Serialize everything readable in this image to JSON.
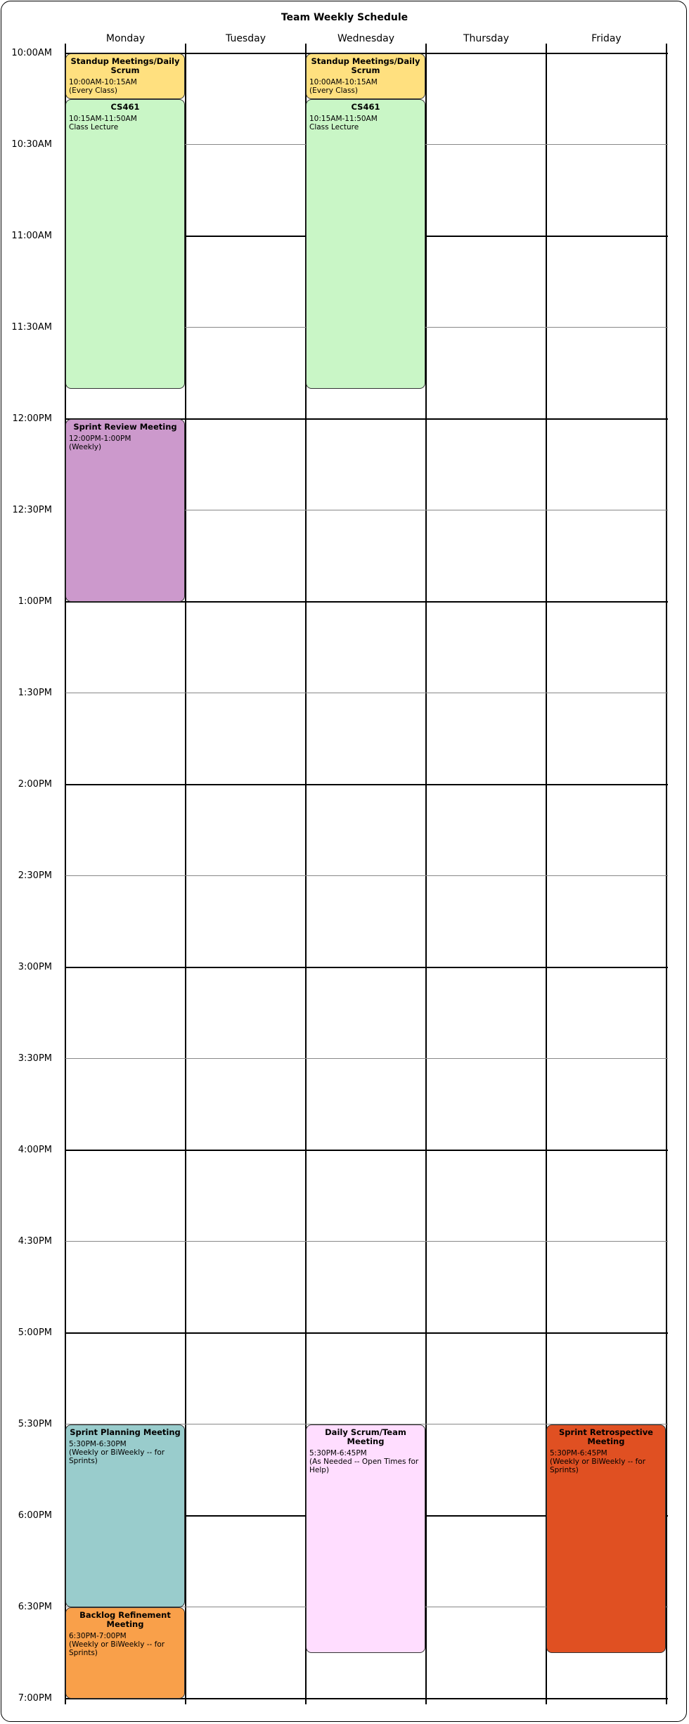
{
  "calendar": {
    "title": "Team Weekly Schedule",
    "days": [
      "Monday",
      "Tuesday",
      "Wednesday",
      "Thursday",
      "Friday"
    ],
    "times": [
      "10:00AM",
      "10:30AM",
      "11:00AM",
      "11:30AM",
      "12:00PM",
      "12:30PM",
      "1:00PM",
      "1:30PM",
      "2:00PM",
      "2:30PM",
      "3:00PM",
      "3:30PM",
      "4:00PM",
      "4:30PM",
      "5:00PM",
      "5:30PM",
      "6:00PM",
      "6:30PM",
      "7:00PM"
    ]
  },
  "events": [
    {
      "day": 0,
      "start": 600,
      "end": 615,
      "title": "Standup Meetings/Daily Scrum",
      "time": "10:00AM-10:15AM",
      "note": "(Every Class)",
      "color": "#FFE07F"
    },
    {
      "day": 0,
      "start": 615,
      "end": 710,
      "title": "CS461",
      "time": "10:15AM-11:50AM",
      "note": "Class Lecture",
      "color": "#C9F6C6"
    },
    {
      "day": 0,
      "start": 720,
      "end": 780,
      "title": "Sprint Review Meeting",
      "time": "12:00PM-1:00PM",
      "note": "(Weekly)",
      "color": "#CC99CC"
    },
    {
      "day": 0,
      "start": 1050,
      "end": 1110,
      "title": "Sprint Planning Meeting",
      "time": "5:30PM-6:30PM",
      "note": "(Weekly or BiWeekly -- for Sprints)",
      "color": "#99CCCC"
    },
    {
      "day": 0,
      "start": 1110,
      "end": 1140,
      "title": "Backlog Refinement Meeting",
      "time": "6:30PM-7:00PM",
      "note": "(Weekly or BiWeekly -- for Sprints)",
      "color": "#F9A04A"
    },
    {
      "day": 2,
      "start": 600,
      "end": 615,
      "title": "Standup Meetings/Daily Scrum",
      "time": "10:00AM-10:15AM",
      "note": "(Every Class)",
      "color": "#FFE07F"
    },
    {
      "day": 2,
      "start": 615,
      "end": 710,
      "title": "CS461",
      "time": "10:15AM-11:50AM",
      "note": "Class Lecture",
      "color": "#C9F6C6"
    },
    {
      "day": 2,
      "start": 1050,
      "end": 1125,
      "title": "Daily Scrum/Team Meeting",
      "time": "5:30PM-6:45PM",
      "note": "(As Needed -- Open Times for Help)",
      "color": "#FFDDFF"
    },
    {
      "day": 4,
      "start": 1050,
      "end": 1125,
      "title": "Sprint Retrospective Meeting",
      "time": "5:30PM-6:45PM",
      "note": "(Weekly or BiWeekly -- for Sprints)",
      "color": "#E05022"
    }
  ]
}
